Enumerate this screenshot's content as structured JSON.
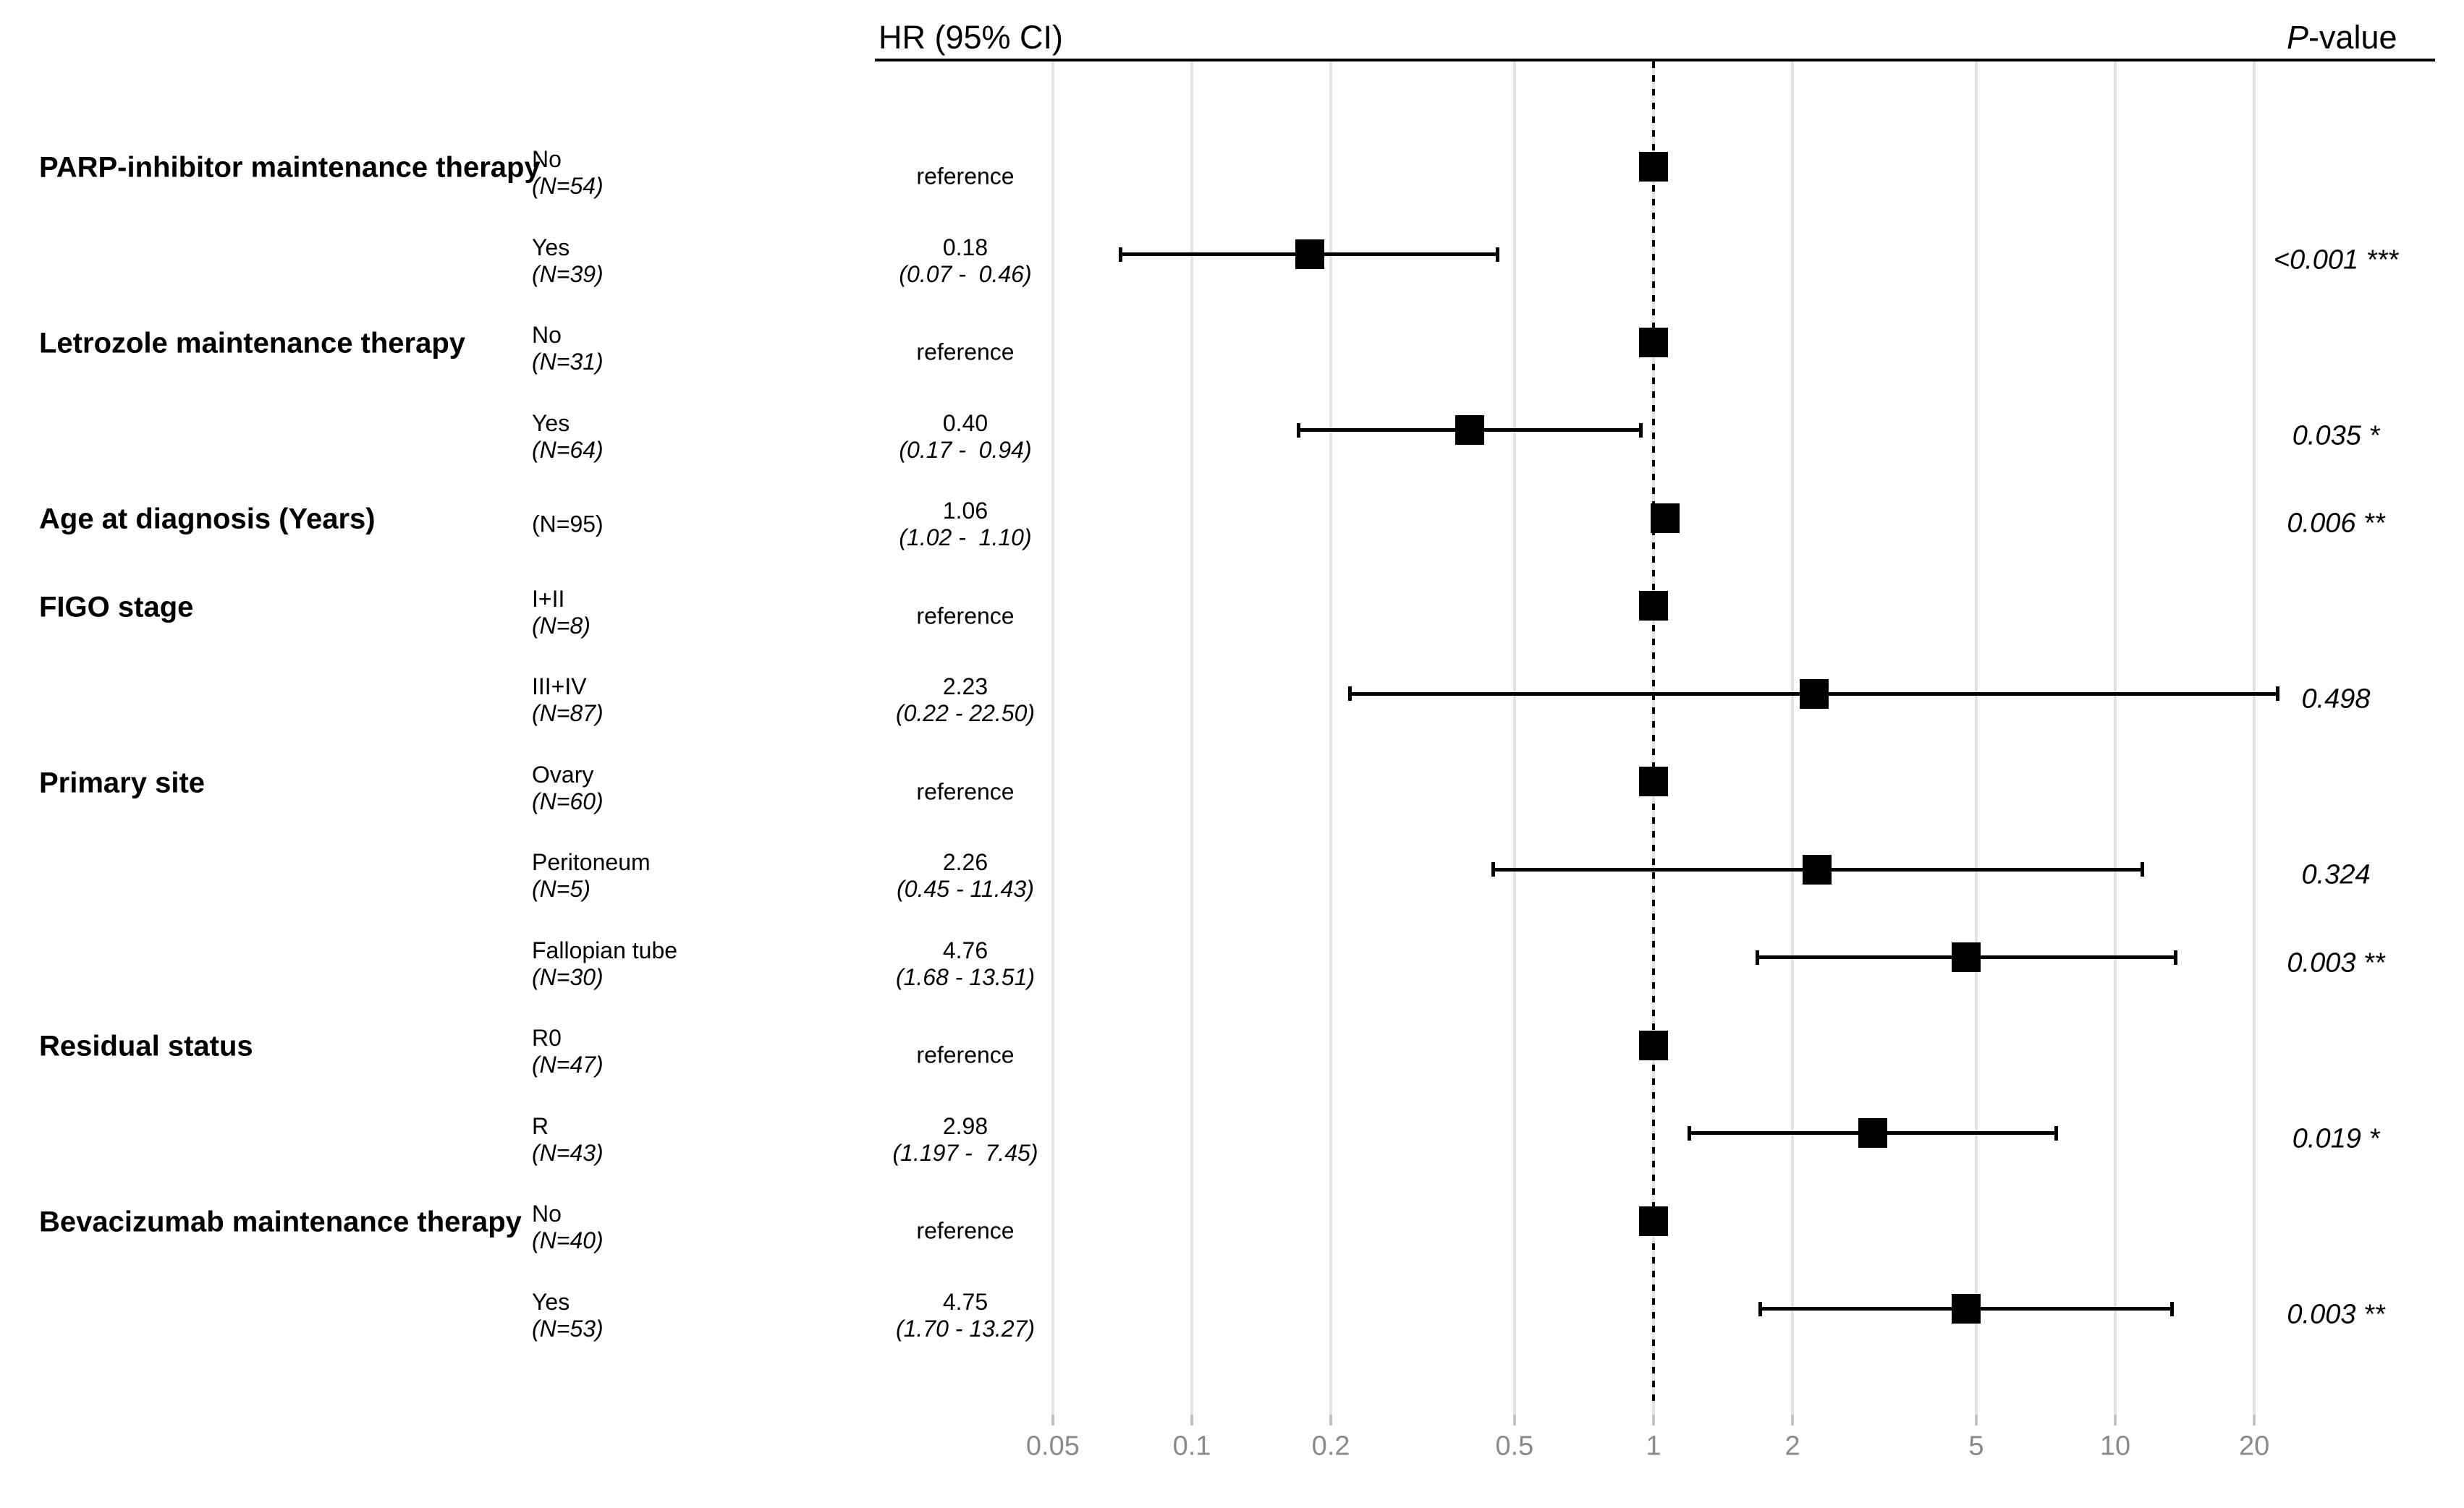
{
  "header": {
    "hr_ci": "HR (95% CI)",
    "pvalue_prefix": "P",
    "pvalue_suffix": "-value"
  },
  "colors": {
    "text": "#000000",
    "tick_label": "#8a8a8a",
    "gridline": "#e4e4e4",
    "tick_mark": "#c2c2c2",
    "marker": "#000000"
  },
  "chart_data": {
    "type": "forest",
    "title": "",
    "x_axis": {
      "scale": "log10",
      "ticks": [
        0.05,
        0.1,
        0.2,
        0.5,
        1,
        2,
        5,
        10,
        20
      ],
      "tick_labels": [
        "0.05",
        "0.1",
        "0.2",
        "0.5",
        "1",
        "2",
        "5",
        "10",
        "20"
      ],
      "reference_line": 1,
      "range": [
        0.04,
        30
      ],
      "grid": true
    },
    "rows": [
      {
        "group": "PARP-inhibitor maintenance therapy",
        "label": "No",
        "n": "(N=54)",
        "reference": true,
        "hr": 1,
        "ci_low": null,
        "ci_high": null,
        "estimate_text": "reference",
        "ci_text": "",
        "p": ""
      },
      {
        "group": "",
        "label": "Yes",
        "n": "(N=39)",
        "reference": false,
        "hr": 0.18,
        "ci_low": 0.07,
        "ci_high": 0.46,
        "estimate_text": "0.18",
        "ci_text": "(0.07 -  0.46)",
        "p": "<0.001 ***"
      },
      {
        "group": "Letrozole maintenance therapy",
        "label": "No",
        "n": "(N=31)",
        "reference": true,
        "hr": 1,
        "ci_low": null,
        "ci_high": null,
        "estimate_text": "reference",
        "ci_text": "",
        "p": ""
      },
      {
        "group": "",
        "label": "Yes",
        "n": "(N=64)",
        "reference": false,
        "hr": 0.4,
        "ci_low": 0.17,
        "ci_high": 0.94,
        "estimate_text": "0.40",
        "ci_text": "(0.17 -  0.94)",
        "p": "0.035 *"
      },
      {
        "group": "Age at diagnosis (Years)",
        "label": "",
        "n": "(N=95)",
        "reference": false,
        "hr": 1.06,
        "ci_low": 1.02,
        "ci_high": 1.1,
        "estimate_text": "1.06",
        "ci_text": "(1.02 -  1.10)",
        "p": "0.006 **"
      },
      {
        "group": "FIGO stage",
        "label": "I+II",
        "n": "(N=8)",
        "reference": true,
        "hr": 1,
        "ci_low": null,
        "ci_high": null,
        "estimate_text": "reference",
        "ci_text": "",
        "p": ""
      },
      {
        "group": "",
        "label": "III+IV",
        "n": "(N=87)",
        "reference": false,
        "hr": 2.23,
        "ci_low": 0.22,
        "ci_high": 22.5,
        "estimate_text": "2.23",
        "ci_text": "(0.22 - 22.50)",
        "p": "0.498"
      },
      {
        "group": "Primary site",
        "label": "Ovary",
        "n": "(N=60)",
        "reference": true,
        "hr": 1,
        "ci_low": null,
        "ci_high": null,
        "estimate_text": "reference",
        "ci_text": "",
        "p": ""
      },
      {
        "group": "",
        "label": "Peritoneum",
        "n": "(N=5)",
        "reference": false,
        "hr": 2.26,
        "ci_low": 0.45,
        "ci_high": 11.43,
        "estimate_text": "2.26",
        "ci_text": "(0.45 - 11.43)",
        "p": "0.324"
      },
      {
        "group": "",
        "label": "Fallopian tube",
        "n": "(N=30)",
        "reference": false,
        "hr": 4.76,
        "ci_low": 1.68,
        "ci_high": 13.51,
        "estimate_text": "4.76",
        "ci_text": "(1.68 - 13.51)",
        "p": "0.003 **"
      },
      {
        "group": "Residual status",
        "label": "R0",
        "n": "(N=47)",
        "reference": true,
        "hr": 1,
        "ci_low": null,
        "ci_high": null,
        "estimate_text": "reference",
        "ci_text": "",
        "p": ""
      },
      {
        "group": "",
        "label": "R",
        "n": "(N=43)",
        "reference": false,
        "hr": 2.98,
        "ci_low": 1.197,
        "ci_high": 7.45,
        "estimate_text": "2.98",
        "ci_text": "(1.197 -  7.45)",
        "p": "0.019 *"
      },
      {
        "group": "Bevacizumab maintenance therapy",
        "label": "No",
        "n": "(N=40)",
        "reference": true,
        "hr": 1,
        "ci_low": null,
        "ci_high": null,
        "estimate_text": "reference",
        "ci_text": "",
        "p": ""
      },
      {
        "group": "",
        "label": "Yes",
        "n": "(N=53)",
        "reference": false,
        "hr": 4.75,
        "ci_low": 1.7,
        "ci_high": 13.27,
        "estimate_text": "4.75",
        "ci_text": "(1.70 - 13.27)",
        "p": "0.003 **"
      }
    ]
  }
}
